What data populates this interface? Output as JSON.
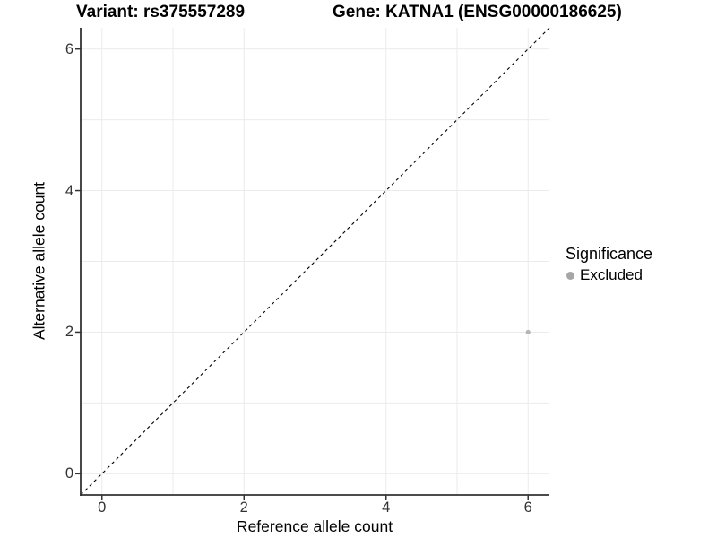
{
  "chart_data": {
    "type": "scatter",
    "title_left": "Variant: rs375557289",
    "title_right": "Gene: KATNA1 (ENSG00000186625)",
    "xlabel": "Reference allele count",
    "ylabel": "Alternative allele count",
    "xlim": [
      -0.3,
      6.3
    ],
    "ylim": [
      -0.3,
      6.3
    ],
    "x_ticks": [
      0,
      2,
      4,
      6
    ],
    "y_ticks": [
      0,
      2,
      4,
      6
    ],
    "x_grid": [
      0,
      1,
      2,
      3,
      4,
      5,
      6
    ],
    "y_grid": [
      0,
      1,
      2,
      3,
      4,
      5,
      6
    ],
    "grid": "on",
    "legend_position": "right",
    "legend": {
      "title": "Significance",
      "items": [
        {
          "label": "Excluded",
          "color": "#a6a6a6"
        }
      ]
    },
    "reference_line": {
      "type": "identity y=x",
      "style": "dashed",
      "color": "#000000"
    },
    "series": [
      {
        "name": "Excluded",
        "color": "#b5b5b5",
        "point_size": 2.6,
        "points": [
          [
            6,
            2
          ]
        ]
      }
    ],
    "colors": {
      "gridline": "#ebebeb",
      "axis_line": "#333333",
      "tick_text": "#333333",
      "background": "#ffffff"
    }
  }
}
